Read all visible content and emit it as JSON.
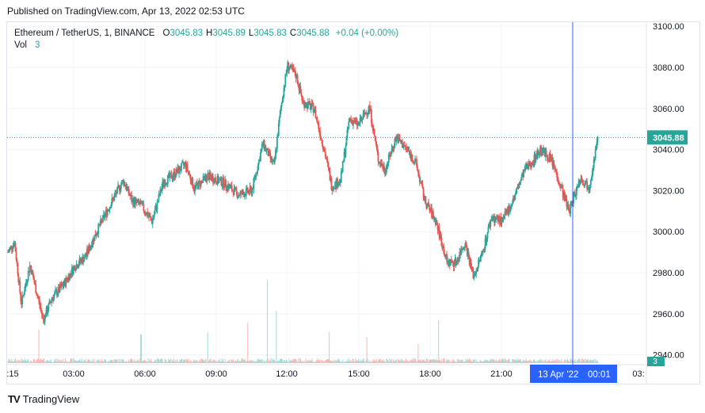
{
  "header": {
    "published": "Published on TradingView.com, Apr 13, 2022 02:53 UTC"
  },
  "legend": {
    "symbol": "Ethereum / TetherUS, 1, BINANCE",
    "o_label": "O",
    "o": "3045.83",
    "h_label": "H",
    "h": "3045.89",
    "l_label": "L",
    "l": "3045.83",
    "c_label": "C",
    "c": "3045.88",
    "change": "+0.04 (+0.00%)",
    "vol_label": "Vol",
    "vol": "3"
  },
  "brand": {
    "name": "TradingView",
    "logo": "TV"
  },
  "colors": {
    "up": "#26a69a",
    "down": "#ef5350",
    "crosshair": "#2962ff",
    "grid": "#f0f3fa"
  },
  "price_badge": "3045.88",
  "volume_badge": "3",
  "crosshair": {
    "label_date": "13 Apr '22",
    "label_time": "00:01"
  },
  "chart_data": {
    "type": "candlestick",
    "y_ticks": [
      3100,
      3080,
      3060,
      3040,
      3020,
      3000,
      2980,
      2960,
      2940
    ],
    "y_tick_labels": [
      "3100.00",
      "3080.00",
      "3060.00",
      "3040.00",
      "3020.00",
      "3000.00",
      "2980.00",
      "2960.00",
      "2940.00"
    ],
    "ylim": [
      2936,
      3102
    ],
    "x_tick_labels": [
      ":15",
      "03:00",
      "06:00",
      "09:00",
      "12:00",
      "15:00",
      "18:00",
      "21:00",
      "03:"
    ],
    "last_price": 3045.88,
    "price_path": [
      [
        0,
        2990
      ],
      [
        0.3,
        2995
      ],
      [
        0.6,
        2965
      ],
      [
        1.0,
        2984
      ],
      [
        1.3,
        2970
      ],
      [
        1.6,
        2957
      ],
      [
        2.0,
        2968
      ],
      [
        2.5,
        2974
      ],
      [
        3.0,
        2983
      ],
      [
        3.5,
        2988
      ],
      [
        4.0,
        3000
      ],
      [
        4.7,
        3015
      ],
      [
        5.2,
        3025
      ],
      [
        5.6,
        3015
      ],
      [
        6.0,
        3013
      ],
      [
        6.5,
        3005
      ],
      [
        7.0,
        3024
      ],
      [
        7.5,
        3028
      ],
      [
        8.0,
        3033
      ],
      [
        8.4,
        3021
      ],
      [
        9.0,
        3027
      ],
      [
        9.7,
        3024
      ],
      [
        10.4,
        3018
      ],
      [
        11.0,
        3020
      ],
      [
        11.5,
        3043
      ],
      [
        12.0,
        3032
      ],
      [
        12.3,
        3060
      ],
      [
        12.6,
        3081
      ],
      [
        13.0,
        3076
      ],
      [
        13.3,
        3063
      ],
      [
        13.8,
        3060
      ],
      [
        14.3,
        3038
      ],
      [
        14.6,
        3022
      ],
      [
        15.0,
        3025
      ],
      [
        15.4,
        3055
      ],
      [
        15.8,
        3052
      ],
      [
        16.3,
        3061
      ],
      [
        16.7,
        3035
      ],
      [
        17.0,
        3030
      ],
      [
        17.5,
        3046
      ],
      [
        18.0,
        3040
      ],
      [
        18.4,
        3033
      ],
      [
        18.8,
        3015
      ],
      [
        19.3,
        3005
      ],
      [
        19.8,
        2985
      ],
      [
        20.2,
        2985
      ],
      [
        20.6,
        2995
      ],
      [
        21.0,
        2978
      ],
      [
        21.4,
        2990
      ],
      [
        21.8,
        3007
      ],
      [
        22.3,
        3005
      ],
      [
        22.8,
        3016
      ],
      [
        23.3,
        3030
      ],
      [
        23.7,
        3035
      ],
      [
        24.0,
        3040
      ],
      [
        24.5,
        3035
      ],
      [
        24.9,
        3023
      ],
      [
        25.3,
        3010
      ],
      [
        25.8,
        3026
      ],
      [
        26.2,
        3022
      ],
      [
        26.6,
        3045
      ]
    ],
    "volume_spikes": [
      [
        1.4,
        14
      ],
      [
        6.0,
        12
      ],
      [
        9.0,
        13
      ],
      [
        10.8,
        17
      ],
      [
        11.7,
        35
      ],
      [
        12.1,
        22
      ],
      [
        14.5,
        13
      ],
      [
        16.2,
        11
      ],
      [
        18.5,
        8
      ],
      [
        19.4,
        18
      ]
    ]
  }
}
